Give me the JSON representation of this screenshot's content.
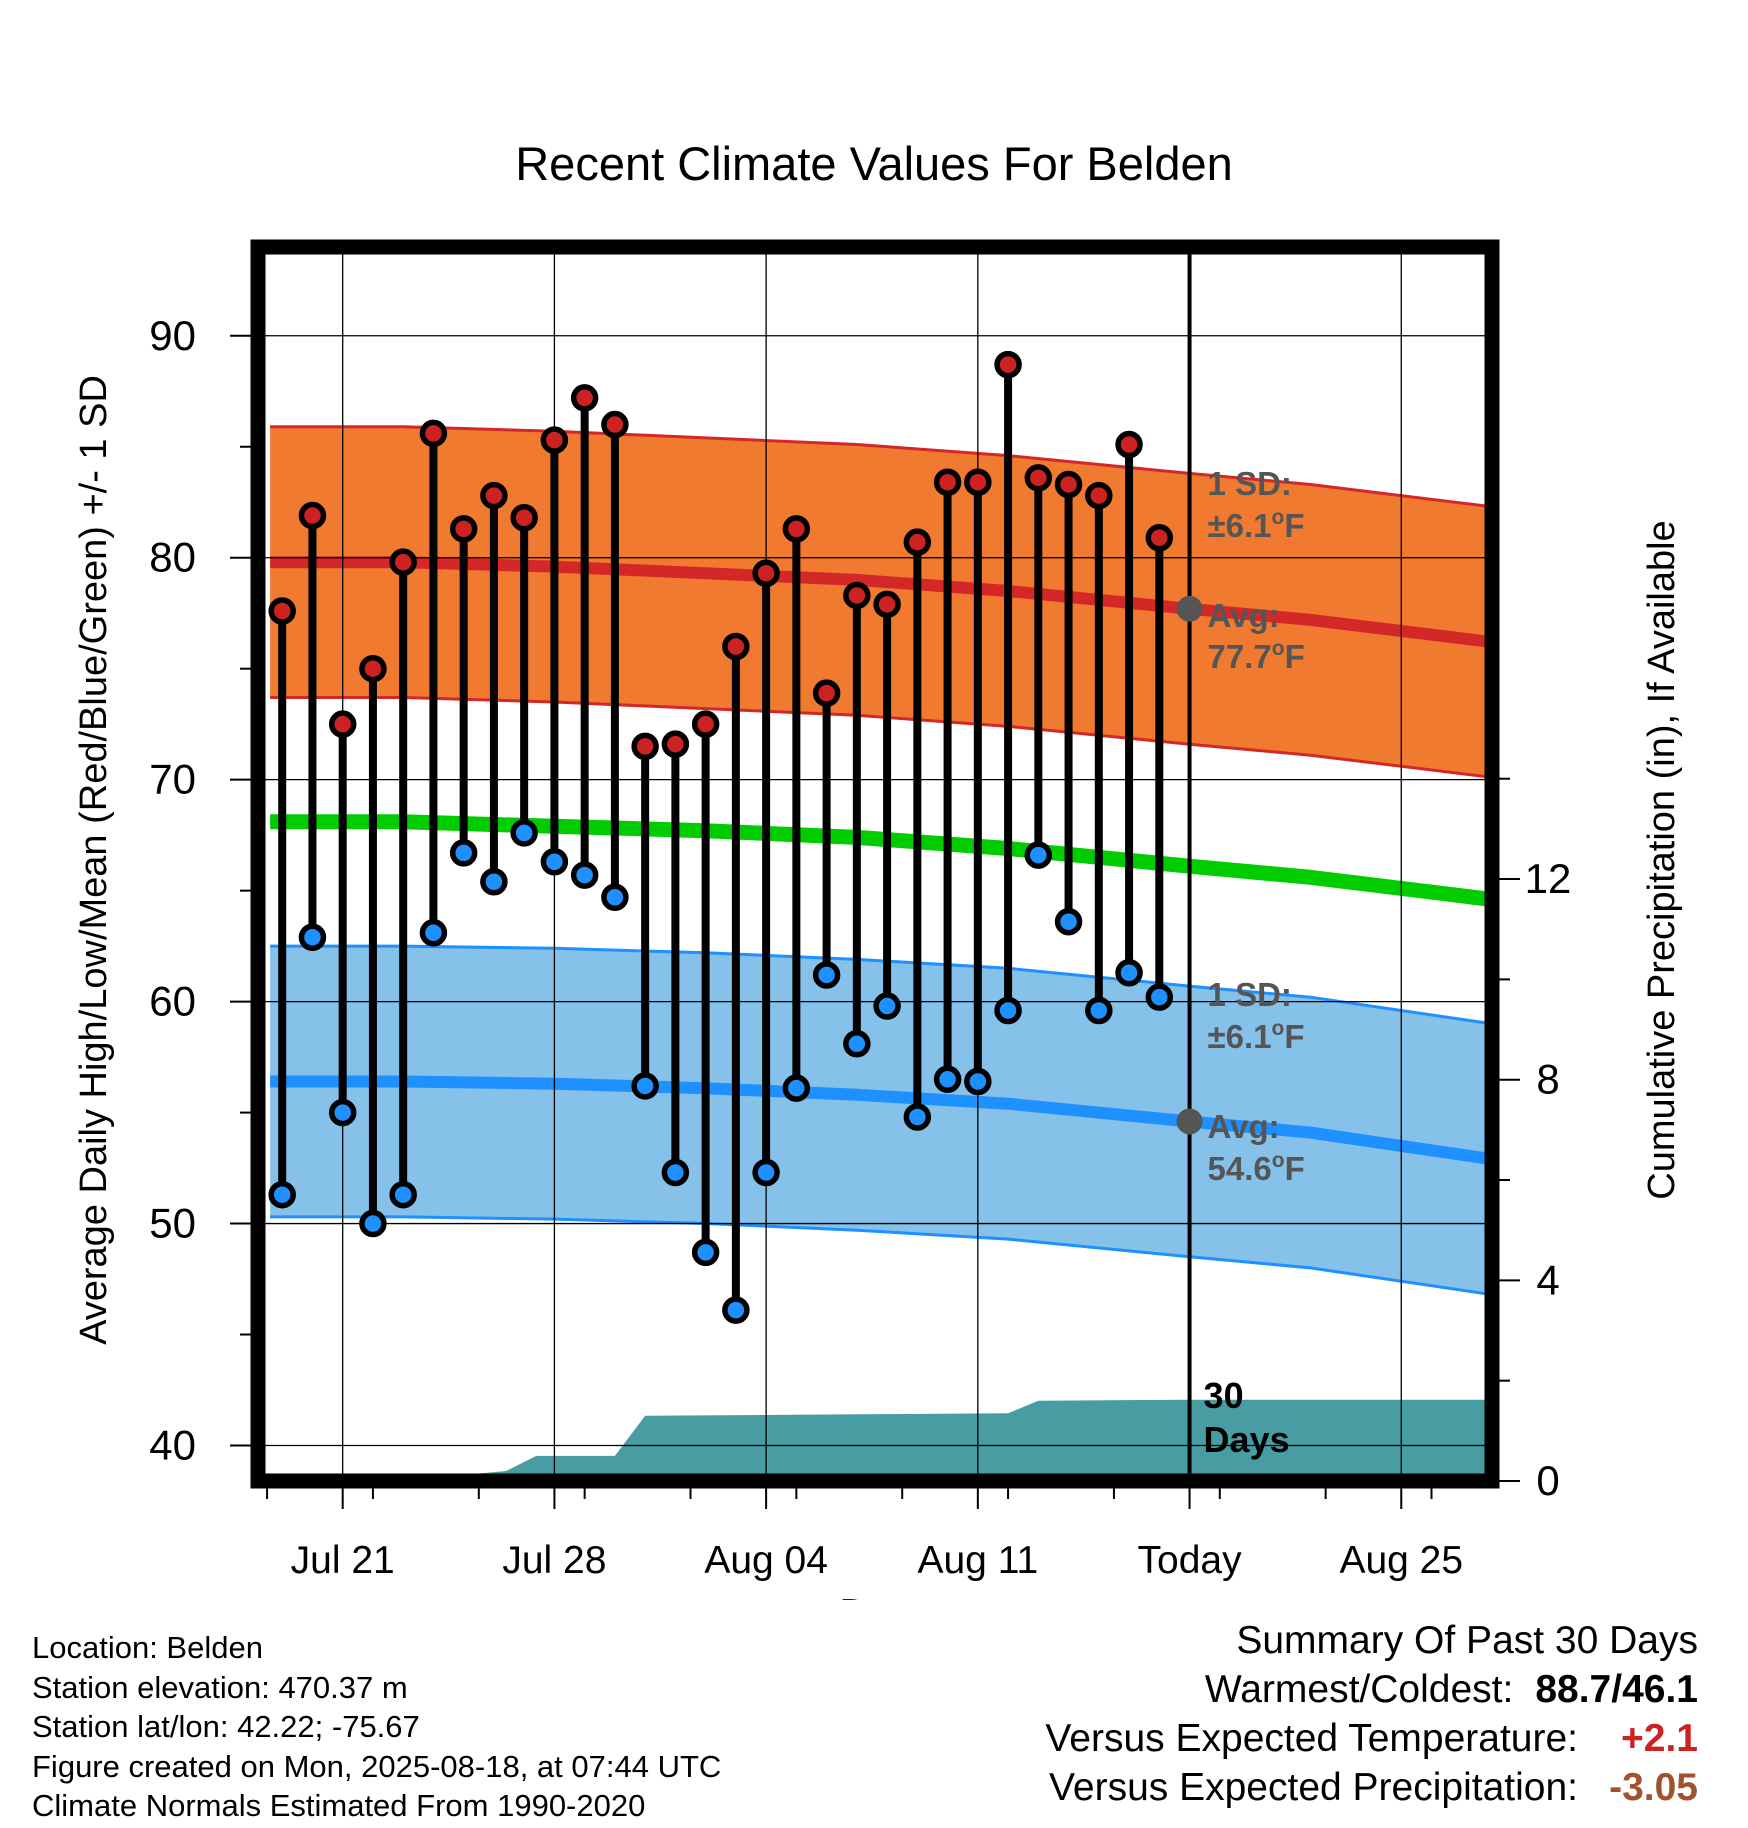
{
  "chart_data": {
    "type": "line",
    "title": "Recent Climate Values For Belden",
    "xlabel": "Day",
    "ylabel_left": "Average Daily High/Low/Mean (Red/Blue/Green) +/- 1 SD",
    "ylabel_right": "Cumulative Precipitation (in), If Available",
    "x_tick_labels": [
      "Jul 21",
      "Jul 28",
      "Aug 04",
      "Aug 11",
      "Today",
      "Aug 25"
    ],
    "x_tick_days": [
      3,
      10,
      17,
      24,
      31,
      38
    ],
    "x_range_days": [
      0.2,
      41
    ],
    "y_left_ticks": [
      40,
      50,
      60,
      70,
      80,
      90
    ],
    "y_left_range": [
      38.4,
      94
    ],
    "y_right_ticks": [
      0,
      4,
      8,
      12
    ],
    "y_right_range": [
      0,
      24.6
    ],
    "grid": true,
    "today_day": 31,
    "normals": {
      "high_mean": [
        [
          0.6,
          79.8
        ],
        [
          5,
          79.8
        ],
        [
          10,
          79.6
        ],
        [
          15,
          79.3
        ],
        [
          20,
          79.0
        ],
        [
          25,
          78.5
        ],
        [
          31,
          77.7
        ],
        [
          35,
          77.2
        ],
        [
          41,
          76.2
        ]
      ],
      "high_sd": 6.1,
      "low_mean": [
        [
          0.6,
          56.4
        ],
        [
          5,
          56.4
        ],
        [
          10,
          56.3
        ],
        [
          15,
          56.1
        ],
        [
          20,
          55.8
        ],
        [
          25,
          55.4
        ],
        [
          31,
          54.6
        ],
        [
          35,
          54.1
        ],
        [
          41,
          52.9
        ]
      ],
      "low_sd": 6.1,
      "mean": [
        [
          0.6,
          68.1
        ],
        [
          5,
          68.1
        ],
        [
          10,
          67.9
        ],
        [
          15,
          67.7
        ],
        [
          20,
          67.4
        ],
        [
          25,
          66.9
        ],
        [
          31,
          66.1
        ],
        [
          35,
          65.6
        ],
        [
          41,
          64.6
        ]
      ],
      "colors": {
        "high_band": "#f07a30",
        "high_line": "#d42828",
        "low_band": "#85c1e8",
        "low_line": "#1e90ff",
        "mean_line": "#00cc00"
      }
    },
    "series": [
      {
        "name": "High",
        "color": "#cc2222",
        "days": [
          1,
          2,
          3,
          4,
          5,
          6,
          7,
          8,
          9,
          10,
          11,
          12,
          13,
          14,
          15,
          16,
          17,
          18,
          19,
          20,
          21,
          22,
          23,
          24,
          25,
          26,
          27,
          28,
          29,
          30
        ],
        "values": [
          77.6,
          81.9,
          72.5,
          75.0,
          79.8,
          85.6,
          81.3,
          82.8,
          81.8,
          85.3,
          87.2,
          86.0,
          71.5,
          71.6,
          72.5,
          76.0,
          79.3,
          81.3,
          73.9,
          78.3,
          77.9,
          80.7,
          83.4,
          83.4,
          88.7,
          83.6,
          83.3,
          82.8,
          85.1,
          80.9
        ]
      },
      {
        "name": "Low",
        "color": "#1e90ff",
        "days": [
          1,
          2,
          3,
          4,
          5,
          6,
          7,
          8,
          9,
          10,
          11,
          12,
          13,
          14,
          15,
          16,
          17,
          18,
          19,
          20,
          21,
          22,
          23,
          24,
          25,
          26,
          27,
          28,
          29,
          30
        ],
        "values": [
          51.3,
          62.9,
          55.0,
          50.0,
          51.3,
          63.1,
          66.7,
          65.4,
          67.6,
          66.3,
          65.7,
          64.7,
          56.2,
          52.3,
          48.7,
          46.1,
          52.3,
          56.1,
          61.2,
          58.1,
          59.8,
          54.8,
          56.5,
          56.4,
          59.6,
          66.6,
          63.6,
          59.6,
          61.3,
          60.2
        ]
      }
    ],
    "precip_cumulative": [
      [
        0.6,
        0
      ],
      [
        6.6,
        0
      ],
      [
        7.5,
        0.15
      ],
      [
        8.4,
        0.2
      ],
      [
        9.4,
        0.5
      ],
      [
        12.0,
        0.5
      ],
      [
        13.0,
        1.3
      ],
      [
        20,
        1.33
      ],
      [
        25,
        1.35
      ],
      [
        26,
        1.6
      ],
      [
        31,
        1.62
      ],
      [
        41,
        1.62
      ]
    ],
    "annotations": {
      "high_sd_label": "1 SD:",
      "high_sd_value": "±6.1°F",
      "high_avg_label": "Avg:",
      "high_avg_value": "77.7°F",
      "low_sd_label": "1 SD:",
      "low_sd_value": "±6.1°F",
      "low_avg_label": "Avg:",
      "low_avg_value": "54.6°F",
      "days_label_1": "30",
      "days_label_2": "Days",
      "high_avg_marker": 77.7,
      "low_avg_marker": 54.6
    }
  },
  "station": {
    "location": "Location: Belden",
    "elevation": "Station elevation: 470.37 m",
    "latlon": "Station lat/lon: 42.22; -75.67",
    "created": "Figure created on Mon, 2025-08-18, at 07:44 UTC",
    "normals": "Climate Normals Estimated From 1990-2020"
  },
  "summary": {
    "heading": "Summary Of Past 30 Days",
    "warmest_coldest_label": "Warmest/Coldest:",
    "warmest_coldest_value": "88.7/46.1",
    "temp_label": "Versus Expected Temperature:",
    "temp_value": "+2.1",
    "precip_label": "Versus Expected Precipitation:",
    "precip_value": "-3.05"
  }
}
